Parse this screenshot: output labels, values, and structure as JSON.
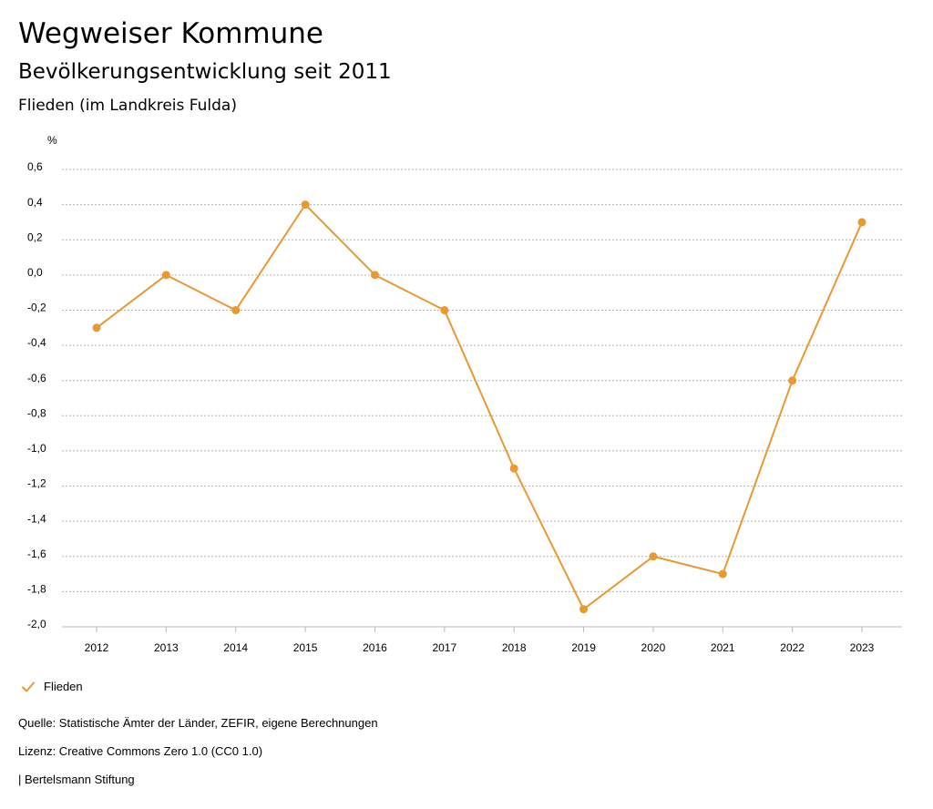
{
  "header": {
    "title": "Wegweiser Kommune",
    "subtitle": "Bevölkerungsentwicklung seit 2011",
    "region": "Flieden (im Landkreis Fulda)"
  },
  "legend": {
    "label": "Flieden",
    "icon": "check-icon"
  },
  "footer": {
    "source": "Quelle: Statistische Ämter der Länder, ZEFIR, eigene Berechnungen",
    "license": "Lizenz: Creative Commons Zero 1.0 (CC0 1.0)",
    "brand": "| Bertelsmann Stiftung"
  },
  "colors": {
    "series": "#e99832",
    "grid": "#b4b4b4",
    "axis": "#bbbbbb"
  },
  "chart_data": {
    "type": "line",
    "title": "Bevölkerungsentwicklung seit 2011",
    "xlabel": "",
    "ylabel": "%",
    "ylim": [
      -2.0,
      0.6
    ],
    "yticks": [
      0.6,
      0.4,
      0.2,
      0.0,
      -0.2,
      -0.4,
      -0.6,
      -0.8,
      -1.0,
      -1.2,
      -1.4,
      -1.6,
      -1.8,
      -2.0
    ],
    "ytick_labels": [
      "0,6",
      "0,4",
      "0,2",
      "0,0",
      "-0,2",
      "-0,4",
      "-0,6",
      "-0,8",
      "-1,0",
      "-1,2",
      "-1,4",
      "-1,6",
      "-1,8",
      "-2,0"
    ],
    "categories": [
      "2012",
      "2013",
      "2014",
      "2015",
      "2016",
      "2017",
      "2018",
      "2019",
      "2020",
      "2021",
      "2022",
      "2023"
    ],
    "series": [
      {
        "name": "Flieden",
        "values": [
          -0.3,
          0.0,
          -0.2,
          0.4,
          0.0,
          -0.2,
          -1.1,
          -1.9,
          -1.6,
          -1.7,
          -0.6,
          0.3
        ]
      }
    ],
    "grid": true,
    "legend_position": "bottom-left"
  }
}
